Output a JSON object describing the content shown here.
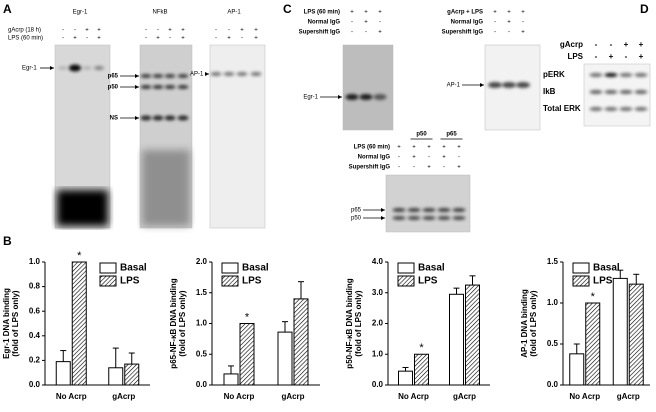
{
  "panels": {
    "A": {
      "label": "A",
      "rows": [
        "gAcrp (18 h)",
        "LPS (60 min)"
      ],
      "gels": [
        {
          "title": "Egr-1",
          "signs": [
            [
              "-",
              "-",
              "+",
              "+"
            ],
            [
              "-",
              "+",
              "-",
              "+"
            ]
          ],
          "bands": [
            "Egr-1"
          ]
        },
        {
          "title": "NFkB",
          "signs": [
            [
              "-",
              "-",
              "+",
              "+"
            ],
            [
              "-",
              "+",
              "-",
              "+"
            ]
          ],
          "bands": [
            "p65",
            "p50",
            "NS"
          ]
        },
        {
          "title": "AP-1",
          "signs": [
            [
              "-",
              "-",
              "+",
              "+"
            ],
            [
              "-",
              "+",
              "-",
              "+"
            ]
          ],
          "bands": [
            "AP-1"
          ]
        }
      ]
    },
    "C": {
      "label": "C",
      "gels": [
        {
          "rows": [
            "LPS (60 min)",
            "Normal IgG",
            "Supershift IgG"
          ],
          "signs": [
            [
              "+",
              "+",
              "+"
            ],
            [
              "-",
              "+",
              "-"
            ],
            [
              "-",
              "-",
              "+"
            ]
          ],
          "bands": [
            "Egr-1"
          ]
        },
        {
          "rows": [
            "gAcrp + LPS",
            "Normal IgG",
            "Supershift IgG"
          ],
          "signs": [
            [
              "+",
              "+",
              "+"
            ],
            [
              "-",
              "+",
              "-"
            ],
            [
              "-",
              "-",
              "+"
            ]
          ],
          "bands": [
            "AP-1"
          ]
        },
        {
          "rows": [
            "LPS (60 min)",
            "Normal IgG",
            "Supershift IgG"
          ],
          "groups": [
            "p50",
            "p65"
          ],
          "signs": [
            [
              "+",
              "+",
              "+",
              "+",
              "+"
            ],
            [
              "-",
              "+",
              "-",
              "+",
              "-"
            ],
            [
              "-",
              "-",
              "+",
              "-",
              "+"
            ]
          ],
          "bands": [
            "p65",
            "p50"
          ]
        }
      ]
    },
    "D": {
      "label": "D",
      "rows": [
        "gAcrp",
        "LPS"
      ],
      "signs": [
        [
          "-",
          "-",
          "+",
          "+"
        ],
        [
          "-",
          "+",
          "-",
          "+"
        ]
      ],
      "bands": [
        "pERK",
        "IkB",
        "Total ERK"
      ]
    },
    "B": {
      "label": "B"
    }
  },
  "chart_data": [
    {
      "type": "bar",
      "ylabel": "Egr-1 DNA binding",
      "ylabel2": "(fold of LPS only)",
      "categories": [
        "No Acrp",
        "gAcrp"
      ],
      "ylim": [
        0,
        1
      ],
      "yticks": [
        {
          "value": 0,
          "label": "0.0"
        },
        0.2,
        0.4,
        0.6,
        0.8,
        {
          "value": 1,
          "label": "1.0"
        }
      ],
      "legend": "upper right",
      "annotation": "*",
      "series": [
        {
          "name": "Basal",
          "color": "#ffffff",
          "hatch": false,
          "values": [
            0.19,
            0.14
          ],
          "errors": [
            0.09,
            0.16
          ]
        },
        {
          "name": "LPS",
          "color": "#ffffff",
          "hatch": true,
          "values": [
            1.0,
            0.17
          ],
          "errors": [
            0,
            0.09
          ]
        }
      ]
    },
    {
      "type": "bar",
      "ylabel": "p65-NF-κB DNA binding",
      "ylabel2": "(fold of LPS only)",
      "categories": [
        "No Acrp",
        "gAcrp"
      ],
      "ylim": [
        0,
        2
      ],
      "yticks": [
        {
          "value": 0,
          "label": "0.0"
        },
        0.5,
        {
          "value": 1,
          "label": "1.0"
        },
        1.5,
        {
          "value": 2,
          "label": "2.0"
        }
      ],
      "legend": "upper left",
      "annotation": "*",
      "series": [
        {
          "name": "Basal",
          "color": "#ffffff",
          "hatch": false,
          "values": [
            0.18,
            0.86
          ],
          "errors": [
            0.13,
            0.17
          ]
        },
        {
          "name": "LPS",
          "color": "#ffffff",
          "hatch": true,
          "values": [
            1.0,
            1.4
          ],
          "errors": [
            0,
            0.28
          ]
        }
      ]
    },
    {
      "type": "bar",
      "ylabel": "p50-NF-κB DNA binding",
      "ylabel2": "(fold of LPS only)",
      "categories": [
        "No Acrp",
        "gAcrp"
      ],
      "ylim": [
        0,
        4
      ],
      "yticks": [
        {
          "value": 0,
          "label": "0.0"
        },
        {
          "value": 1,
          "label": "1.0"
        },
        {
          "value": 2,
          "label": "2.0"
        },
        {
          "value": 3,
          "label": "3.0"
        },
        {
          "value": 4,
          "label": "4.0"
        }
      ],
      "legend": "upper left",
      "annotation": "*",
      "series": [
        {
          "name": "Basal",
          "color": "#ffffff",
          "hatch": false,
          "values": [
            0.45,
            2.95
          ],
          "errors": [
            0.12,
            0.2
          ]
        },
        {
          "name": "LPS",
          "color": "#ffffff",
          "hatch": true,
          "values": [
            1.0,
            3.25
          ],
          "errors": [
            0,
            0.3
          ]
        }
      ]
    },
    {
      "type": "bar",
      "ylabel": "AP-1 DNA binding",
      "ylabel2": "(fold of LPS only)",
      "categories": [
        "No Acrp",
        "gAcrp"
      ],
      "ylim": [
        0,
        1.5
      ],
      "yticks": [
        {
          "value": 0,
          "label": "0.0"
        },
        0.5,
        {
          "value": 1,
          "label": "1.0"
        },
        1.5
      ],
      "legend": "upper left",
      "annotation": "*",
      "series": [
        {
          "name": "Basal",
          "color": "#ffffff",
          "hatch": false,
          "values": [
            0.38,
            1.3
          ],
          "errors": [
            0.12,
            0.1
          ]
        },
        {
          "name": "LPS",
          "color": "#ffffff",
          "hatch": true,
          "values": [
            1.0,
            1.23
          ],
          "errors": [
            0,
            0.12
          ]
        }
      ]
    }
  ]
}
